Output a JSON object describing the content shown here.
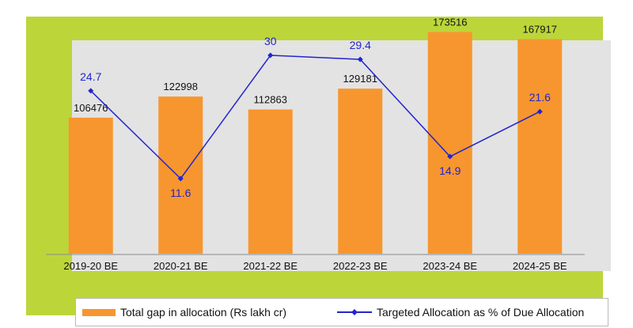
{
  "chart_data": {
    "type": "bar",
    "categories": [
      "2019-20 BE",
      "2020-21 BE",
      "2021-22 BE",
      "2022-23 BE",
      "2023-24 BE",
      "2024-25 BE"
    ],
    "series": [
      {
        "name": "Total gap in allocation (Rs lakh cr)",
        "type": "bar",
        "axis": "primary",
        "values": [
          106476,
          122998,
          112863,
          129181,
          173516,
          167917
        ],
        "labels": [
          "106476",
          "122998",
          "112863",
          "129181",
          "173516",
          "167917"
        ],
        "color": "#f7962e"
      },
      {
        "name": "Targeted Allocation as % of Due Allocation",
        "type": "line",
        "axis": "secondary",
        "values": [
          24.7,
          11.6,
          30,
          29.4,
          14.9,
          21.6
        ],
        "labels": [
          "24.7",
          "11.6",
          "30",
          "29.4",
          "14.9",
          "21.6"
        ],
        "color": "#2424cc"
      }
    ],
    "ylim": [
      0,
      180000
    ],
    "y2lim": [
      0,
      34
    ],
    "grid": false,
    "legend_position": "bottom"
  },
  "legend": {
    "bar_label": "Total gap in allocation (Rs lakh cr)",
    "line_label": "Targeted Allocation as % of Due Allocation"
  }
}
